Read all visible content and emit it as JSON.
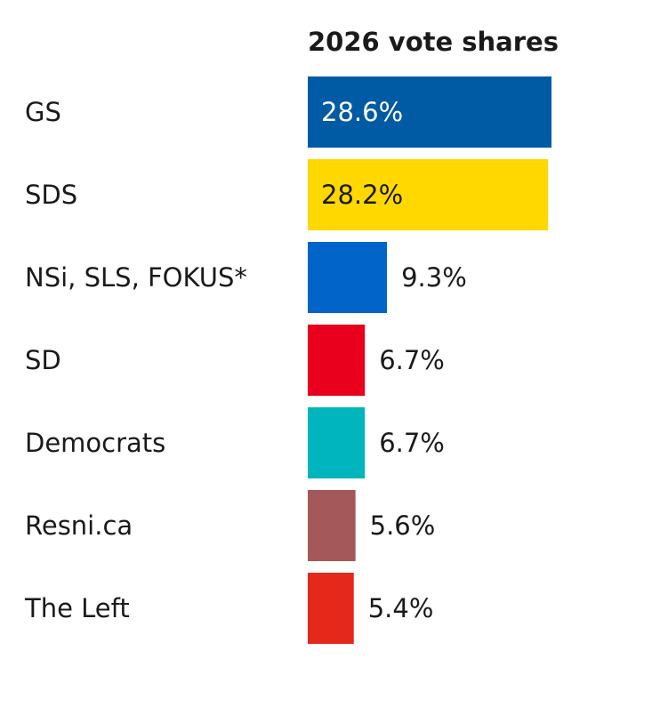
{
  "chart_data": {
    "type": "bar",
    "orientation": "horizontal",
    "title": "2026 vote shares",
    "xlabel": "",
    "ylabel": "",
    "xlim": [
      0,
      30
    ],
    "grid": false,
    "categories": [
      "GS",
      "SDS",
      "NSi, SLS, FOKUS*",
      "SD",
      "Democrats",
      "Resni.ca",
      "The Left"
    ],
    "values": [
      28.6,
      28.2,
      9.3,
      6.7,
      6.7,
      5.6,
      5.4
    ],
    "value_labels": [
      "28.6%",
      "28.2%",
      "9.3%",
      "6.7%",
      "6.7%",
      "5.6%",
      "5.4%"
    ],
    "colors": [
      "#005ba4",
      "#ffd800",
      "#0064c8",
      "#e8001c",
      "#00b5bd",
      "#a5585a",
      "#e5281a"
    ],
    "label_inside": [
      true,
      true,
      false,
      false,
      false,
      false,
      false
    ],
    "inside_label_colors": [
      "#ffffff",
      "#1a1a1a"
    ]
  }
}
